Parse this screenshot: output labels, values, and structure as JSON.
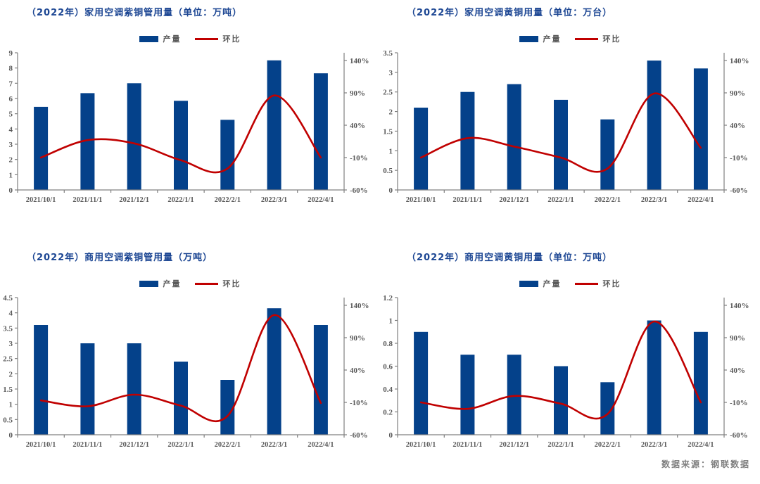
{
  "page": {
    "footer": "数据来源：钢联数据"
  },
  "colors": {
    "bar": "#04418a",
    "line": "#c00000",
    "title": "#1c4693",
    "axis": "#808080",
    "tick_text": "#595959",
    "footer": "#7f7f7f"
  },
  "chart_data": [
    {
      "type": "bar",
      "title": "（2022年）家用空调紫铜管用量（单位：万吨）",
      "categories": [
        "2021/10/1",
        "2021/11/1",
        "2021/12/1",
        "2022/1/1",
        "2022/2/1",
        "2022/3/1",
        "2022/4/1"
      ],
      "series": [
        {
          "name": "产量",
          "type": "bar",
          "axis": "left",
          "values": [
            5.45,
            6.35,
            7.0,
            5.85,
            4.6,
            8.5,
            7.65
          ]
        },
        {
          "name": "环比",
          "type": "line",
          "axis": "right",
          "unit": "%",
          "values": [
            -10,
            17,
            12,
            -14,
            -27,
            86,
            -10
          ]
        }
      ],
      "left_axis": {
        "min": 0,
        "max": 9,
        "step": 1
      },
      "right_axis": {
        "min": -60,
        "max": 140,
        "step": 50,
        "suffix": "%"
      },
      "legend_position": "top",
      "grid": false
    },
    {
      "type": "bar",
      "title": "（2022年）家用空调黄铜用量（单位：万台）",
      "categories": [
        "2021/10/1",
        "2021/11/1",
        "2021/12/1",
        "2022/1/1",
        "2022/2/1",
        "2022/3/1",
        "2022/4/1"
      ],
      "series": [
        {
          "name": "产量",
          "type": "bar",
          "axis": "left",
          "values": [
            2.1,
            2.5,
            2.7,
            2.3,
            1.8,
            3.3,
            3.1
          ]
        },
        {
          "name": "环比",
          "type": "line",
          "axis": "right",
          "unit": "%",
          "values": [
            -10,
            20,
            7,
            -10,
            -27,
            89,
            5
          ]
        }
      ],
      "left_axis": {
        "min": 0,
        "max": 3.5,
        "step": 0.5
      },
      "right_axis": {
        "min": -60,
        "max": 140,
        "step": 50,
        "suffix": "%"
      },
      "legend_position": "top",
      "grid": false
    },
    {
      "type": "bar",
      "title": "（2022年）商用空调紫铜管用量（万吨）",
      "categories": [
        "2021/10/1",
        "2021/11/1",
        "2021/12/1",
        "2022/1/1",
        "2022/2/1",
        "2022/3/1",
        "2022/4/1"
      ],
      "series": [
        {
          "name": "产量",
          "type": "bar",
          "axis": "left",
          "values": [
            3.6,
            3.0,
            3.0,
            2.4,
            1.8,
            4.15,
            3.6
          ]
        },
        {
          "name": "环比",
          "type": "line",
          "axis": "right",
          "unit": "%",
          "values": [
            -7,
            -16,
            2,
            -15,
            -31,
            125,
            -11
          ]
        }
      ],
      "left_axis": {
        "min": 0,
        "max": 4.5,
        "step": 0.5
      },
      "right_axis": {
        "min": -60,
        "max": 140,
        "step": 50,
        "suffix": "%"
      },
      "legend_position": "top",
      "grid": false
    },
    {
      "type": "bar",
      "title": "（2022年）商用空调黄铜用量（单位：万吨）",
      "categories": [
        "2021/10/1",
        "2021/11/1",
        "2021/12/1",
        "2022/1/1",
        "2022/2/1",
        "2022/3/1",
        "2022/4/1"
      ],
      "series": [
        {
          "name": "产量",
          "type": "bar",
          "axis": "left",
          "values": [
            0.9,
            0.7,
            0.7,
            0.6,
            0.46,
            1.0,
            0.9
          ]
        },
        {
          "name": "环比",
          "type": "line",
          "axis": "right",
          "unit": "%",
          "values": [
            -10,
            -20,
            0,
            -12,
            -28,
            115,
            -10
          ]
        }
      ],
      "left_axis": {
        "min": 0,
        "max": 1.2,
        "step": 0.2
      },
      "right_axis": {
        "min": -60,
        "max": 140,
        "step": 50,
        "suffix": "%"
      },
      "legend_position": "top",
      "grid": false
    }
  ]
}
